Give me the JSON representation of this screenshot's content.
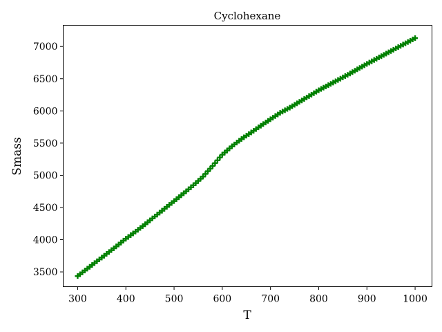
{
  "chart_data": {
    "type": "scatter",
    "title": "Cyclohexane",
    "xlabel": "T",
    "ylabel": "Smass",
    "xlim": [
      270,
      1035
    ],
    "ylim": [
      3270,
      7330
    ],
    "xticks": [
      300,
      400,
      500,
      600,
      700,
      800,
      900,
      1000
    ],
    "yticks": [
      3500,
      4000,
      4500,
      5000,
      5500,
      6000,
      6500,
      7000
    ],
    "xtick_labels": [
      "300",
      "400",
      "500",
      "600",
      "700",
      "800",
      "900",
      "1000"
    ],
    "ytick_labels": [
      "3500",
      "4000",
      "4500",
      "5000",
      "5500",
      "6000",
      "6500",
      "7000"
    ],
    "grid": false,
    "series": [
      {
        "color": "#008000",
        "marker": "plus",
        "x_start": 300,
        "x_end": 1000,
        "x_step": 5,
        "curve_points": [
          [
            300,
            3435
          ],
          [
            320,
            3550
          ],
          [
            340,
            3665
          ],
          [
            360,
            3780
          ],
          [
            380,
            3895
          ],
          [
            400,
            4015
          ],
          [
            420,
            4125
          ],
          [
            440,
            4240
          ],
          [
            460,
            4360
          ],
          [
            480,
            4480
          ],
          [
            500,
            4600
          ],
          [
            520,
            4720
          ],
          [
            540,
            4845
          ],
          [
            560,
            4980
          ],
          [
            580,
            5145
          ],
          [
            600,
            5320
          ],
          [
            620,
            5450
          ],
          [
            640,
            5565
          ],
          [
            660,
            5665
          ],
          [
            680,
            5770
          ],
          [
            700,
            5870
          ],
          [
            720,
            5970
          ],
          [
            740,
            6050
          ],
          [
            760,
            6140
          ],
          [
            780,
            6230
          ],
          [
            800,
            6320
          ],
          [
            820,
            6400
          ],
          [
            840,
            6480
          ],
          [
            860,
            6560
          ],
          [
            880,
            6645
          ],
          [
            900,
            6730
          ],
          [
            920,
            6810
          ],
          [
            940,
            6890
          ],
          [
            960,
            6970
          ],
          [
            980,
            7050
          ],
          [
            1000,
            7130
          ]
        ]
      }
    ]
  }
}
